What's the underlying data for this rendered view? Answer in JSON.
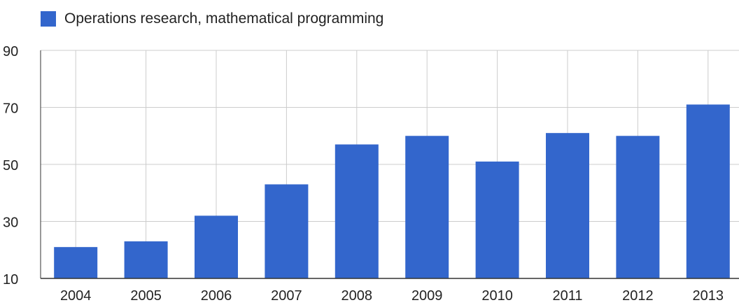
{
  "chart_data": {
    "type": "bar",
    "title": "",
    "xlabel": "",
    "ylabel": "",
    "categories": [
      "2004",
      "2005",
      "2006",
      "2007",
      "2008",
      "2009",
      "2010",
      "2011",
      "2012",
      "2013"
    ],
    "series": [
      {
        "name": "Operations research, mathematical programming",
        "values": [
          21,
          23,
          32,
          43,
          57,
          60,
          51,
          61,
          60,
          71
        ],
        "color": "#3366cc"
      }
    ],
    "ylim": [
      10,
      90
    ],
    "yticks": [
      10,
      30,
      50,
      70,
      90
    ],
    "grid": true,
    "legend_position": "top-left"
  }
}
